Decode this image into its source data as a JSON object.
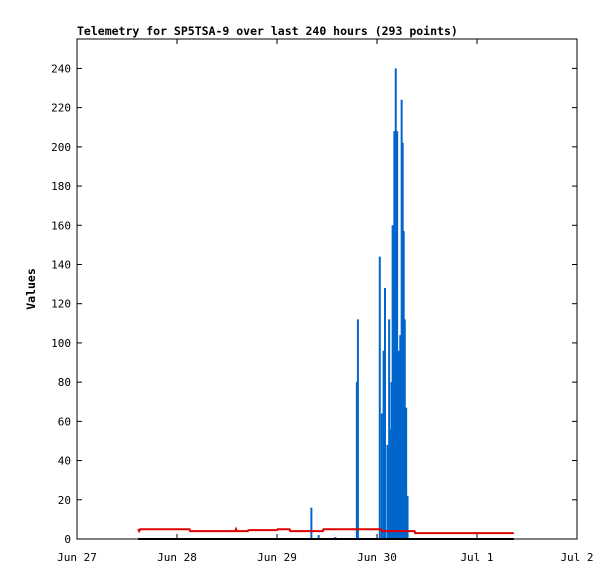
{
  "chart_data": {
    "type": "line",
    "title": "Telemetry for SP5TSA-9 over last 240 hours (293 points)",
    "ylabel": "Values",
    "xlabel": "",
    "ylim": [
      0,
      255
    ],
    "xlim": [
      "2024-06-27T00:00",
      "2024-07-02T00:00"
    ],
    "y_ticks": [
      0,
      20,
      40,
      60,
      80,
      100,
      120,
      140,
      160,
      180,
      200,
      220,
      240
    ],
    "x_ticks": [
      {
        "label": "Jun 27",
        "t": "2024-06-27T00:00"
      },
      {
        "label": "Jun 28",
        "t": "2024-06-28T00:00"
      },
      {
        "label": "Jun 29",
        "t": "2024-06-29T00:00"
      },
      {
        "label": "Jun 30",
        "t": "2024-06-30T00:00"
      },
      {
        "label": "Jul 1",
        "t": "2024-07-01T00:00"
      },
      {
        "label": "Jul 2",
        "t": "2024-07-02T00:00"
      }
    ],
    "grid": false,
    "series": [
      {
        "color": "#0066cc",
        "render": "impulses",
        "points": [
          [
            "2024-06-29T08:15",
            16
          ],
          [
            "2024-06-29T10:00",
            2
          ],
          [
            "2024-06-29T14:00",
            1
          ],
          [
            "2024-06-29T19:10",
            80
          ],
          [
            "2024-06-29T19:25",
            112
          ],
          [
            "2024-06-30T00:40",
            144
          ],
          [
            "2024-06-30T01:10",
            64
          ],
          [
            "2024-06-30T01:35",
            96
          ],
          [
            "2024-06-30T01:55",
            128
          ],
          [
            "2024-06-30T02:30",
            48
          ],
          [
            "2024-06-30T02:55",
            112
          ],
          [
            "2024-06-30T03:10",
            56
          ],
          [
            "2024-06-30T03:30",
            80
          ],
          [
            "2024-06-30T03:45",
            160
          ],
          [
            "2024-06-30T04:10",
            208
          ],
          [
            "2024-06-30T04:30",
            240
          ],
          [
            "2024-06-30T04:50",
            208
          ],
          [
            "2024-06-30T05:15",
            96
          ],
          [
            "2024-06-30T05:35",
            104
          ],
          [
            "2024-06-30T05:55",
            224
          ],
          [
            "2024-06-30T06:10",
            202
          ],
          [
            "2024-06-30T06:25",
            157
          ],
          [
            "2024-06-30T06:40",
            112
          ],
          [
            "2024-06-30T07:00",
            67
          ],
          [
            "2024-06-30T07:20",
            22
          ]
        ]
      },
      {
        "color": "#dd0000",
        "render": "line",
        "points": [
          [
            "2024-06-27T14:40",
            5
          ],
          [
            "2024-06-27T14:55",
            4
          ],
          [
            "2024-06-27T15:10",
            5
          ],
          [
            "2024-06-28T03:00",
            5
          ],
          [
            "2024-06-28T03:10",
            4
          ],
          [
            "2024-06-28T14:00",
            4
          ],
          [
            "2024-06-28T14:10",
            5
          ],
          [
            "2024-06-28T14:20",
            4
          ],
          [
            "2024-06-28T17:00",
            4
          ],
          [
            "2024-06-28T17:10",
            4.5
          ],
          [
            "2024-06-29T00:00",
            4.5
          ],
          [
            "2024-06-29T00:10",
            5
          ],
          [
            "2024-06-29T03:00",
            5
          ],
          [
            "2024-06-29T03:10",
            4
          ],
          [
            "2024-06-29T11:00",
            4
          ],
          [
            "2024-06-29T11:10",
            5
          ],
          [
            "2024-06-30T01:00",
            5
          ],
          [
            "2024-06-30T01:10",
            4
          ],
          [
            "2024-06-30T09:00",
            4
          ],
          [
            "2024-06-30T09:10",
            3
          ],
          [
            "2024-07-01T08:50",
            3
          ]
        ]
      },
      {
        "color": "#000000",
        "render": "line",
        "points": [
          [
            "2024-06-27T14:40",
            0
          ],
          [
            "2024-07-01T08:50",
            0
          ]
        ]
      }
    ]
  }
}
